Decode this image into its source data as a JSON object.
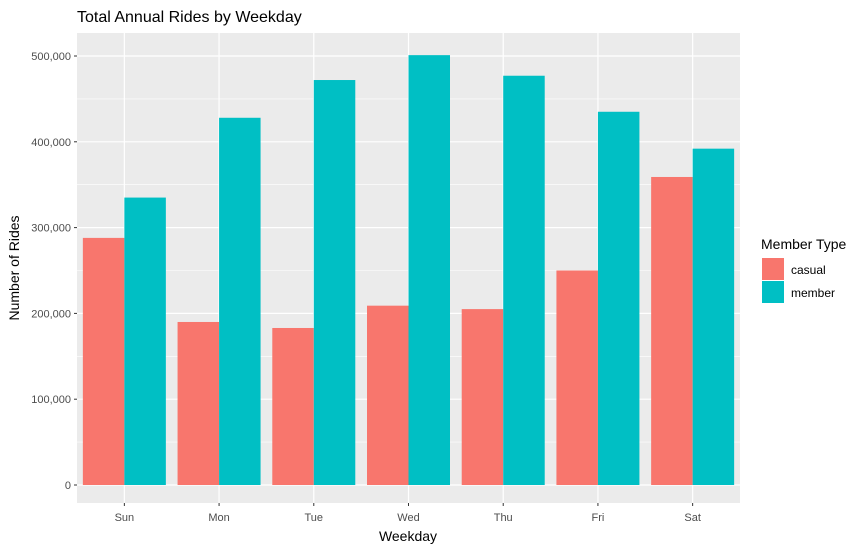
{
  "chart_data": {
    "type": "bar",
    "title": "Total Annual Rides by Weekday",
    "xlabel": "Weekday",
    "ylabel": "Number of Rides",
    "categories": [
      "Sun",
      "Mon",
      "Tue",
      "Wed",
      "Thu",
      "Fri",
      "Sat"
    ],
    "series": [
      {
        "name": "casual",
        "color": "#F8766D",
        "values": [
          288000,
          190000,
          183000,
          209000,
          205000,
          250000,
          359000
        ]
      },
      {
        "name": "member",
        "color": "#00BFC4",
        "values": [
          335000,
          428000,
          472000,
          501000,
          477000,
          435000,
          392000
        ]
      }
    ],
    "ylim": [
      0,
      520000
    ],
    "yticks": [
      0,
      100000,
      200000,
      300000,
      400000,
      500000
    ],
    "ytick_labels": [
      "0",
      "100,000",
      "200,000",
      "300,000",
      "400,000",
      "500,000"
    ],
    "grid": true,
    "legend": {
      "title": "Member Type",
      "placement": "right"
    },
    "panel_color": "#EBEBEB",
    "grid_color": "#FFFFFF"
  }
}
